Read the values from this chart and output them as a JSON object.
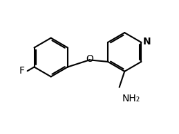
{
  "bg_color": "#ffffff",
  "line_color": "#000000",
  "label_color": "#000000",
  "F_label": "F",
  "O_label": "O",
  "N_label": "N",
  "NH2_label": "NH₂",
  "figsize": [
    2.59,
    1.93
  ],
  "dpi": 100,
  "line_width": 1.5,
  "font_size": 10,
  "nh2_font_size": 10
}
